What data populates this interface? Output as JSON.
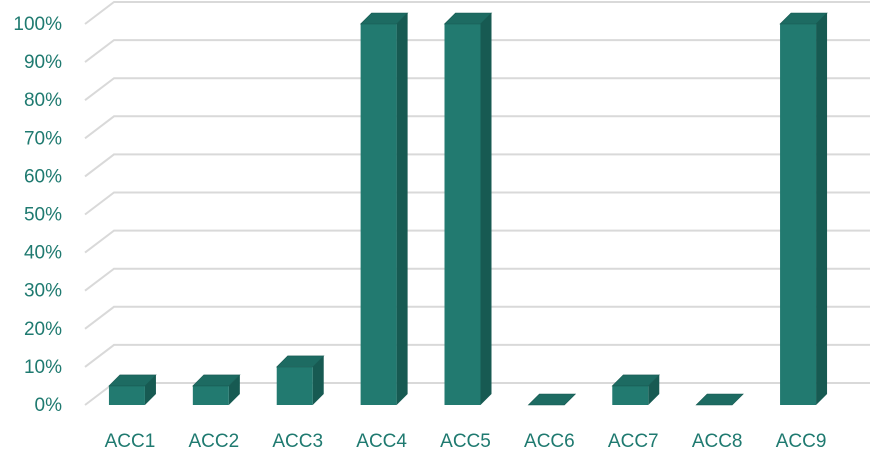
{
  "chart_data": {
    "type": "bar",
    "style": "3d-column",
    "categories": [
      "ACC1",
      "ACC2",
      "ACC3",
      "ACC4",
      "ACC5",
      "ACC6",
      "ACC7",
      "ACC8",
      "ACC9"
    ],
    "values": [
      5,
      5,
      10,
      100,
      100,
      0,
      5,
      0,
      100
    ],
    "ylim": [
      0,
      100
    ],
    "yticks": [
      "0%",
      "10%",
      "20%",
      "30%",
      "40%",
      "50%",
      "60%",
      "70%",
      "80%",
      "90%",
      "100%"
    ],
    "title": "",
    "xlabel": "",
    "ylabel": "",
    "grid": true,
    "legend": "none",
    "colors": {
      "bar_front": "#227a70",
      "bar_side": "#175a52",
      "bar_top": "#1d6b62",
      "grid": "#d9d9d9",
      "text": "#1f7a70"
    }
  }
}
